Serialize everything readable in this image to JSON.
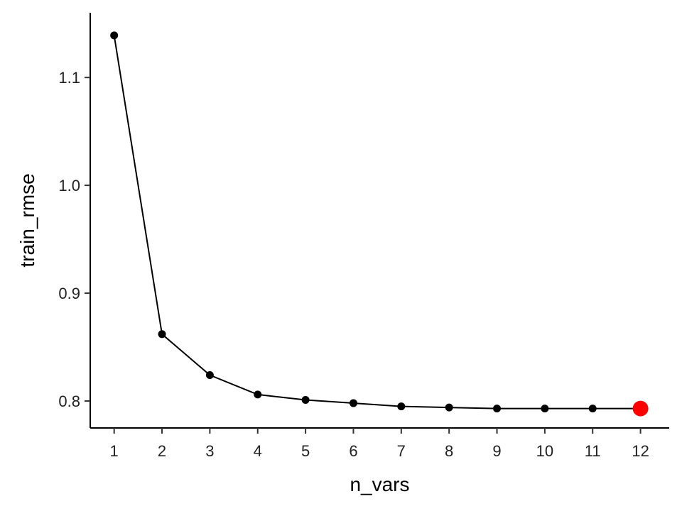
{
  "chart_data": {
    "type": "line",
    "xlabel": "n_vars",
    "ylabel": "train_rmse",
    "xlim": [
      0.5,
      12.6
    ],
    "ylim": [
      0.775,
      1.16
    ],
    "x_ticks": [
      1,
      2,
      3,
      4,
      5,
      6,
      7,
      8,
      9,
      10,
      11,
      12
    ],
    "y_ticks": [
      0.8,
      0.9,
      1.0,
      1.1
    ],
    "y_tick_labels": [
      "0.8",
      "0.9",
      "1.0",
      "1.1"
    ],
    "grid": false,
    "series": [
      {
        "x": [
          1,
          2,
          3,
          4,
          5,
          6,
          7,
          8,
          9,
          10,
          11,
          12
        ],
        "y": [
          1.139,
          0.862,
          0.824,
          0.806,
          0.801,
          0.798,
          0.795,
          0.794,
          0.793,
          0.793,
          0.793,
          0.793
        ],
        "color": "#000000"
      }
    ],
    "highlight": {
      "x": 12,
      "y": 0.793,
      "color": "#ff0000"
    }
  }
}
